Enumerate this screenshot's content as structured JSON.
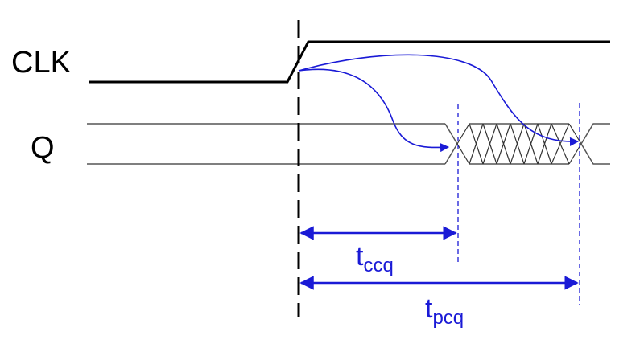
{
  "signals": {
    "clk_label": "CLK",
    "q_label": "Q"
  },
  "timing": {
    "tccq": {
      "main": "t",
      "sub": "ccq"
    },
    "tpcq": {
      "main": "t",
      "sub": "pcq"
    }
  },
  "colors": {
    "accent": "#1a1ad6",
    "waveform": "#000000",
    "q_line": "#555555"
  }
}
